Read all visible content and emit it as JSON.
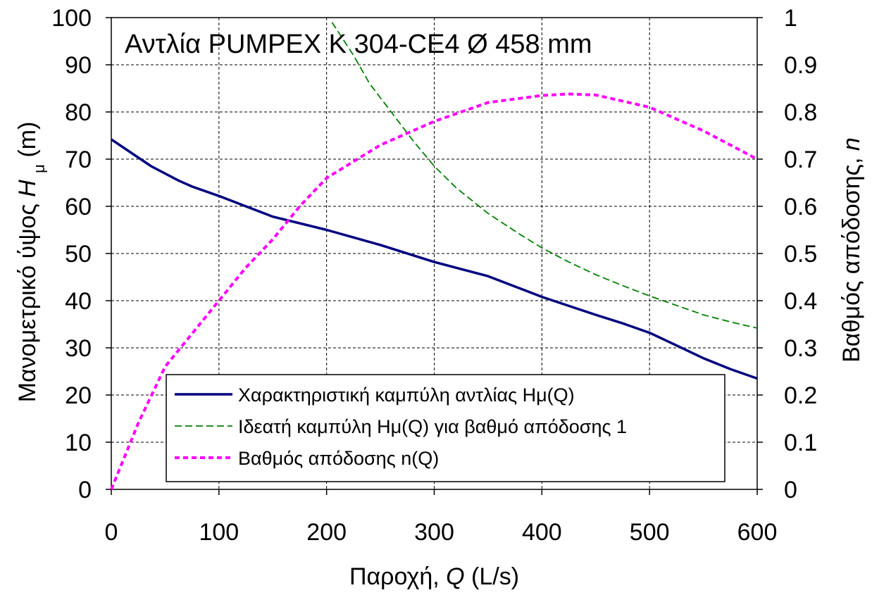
{
  "chart_data": {
    "type": "line",
    "title": "Αντλία PUMPEX K 304-CE4 Ø 458 mm",
    "xlabel": {
      "prefix": "Παροχή, ",
      "var": "Q",
      "suffix": " (L/s)"
    },
    "ylabel_left": {
      "prefix": "Μανομετρικό ύψος ",
      "var": "H",
      "sub": "μ",
      "suffix": " (m)"
    },
    "ylabel_right": {
      "prefix": "Βαθμός απόδοσης, ",
      "var": "n"
    },
    "xlim": [
      0,
      600
    ],
    "ylim_left": [
      0,
      100
    ],
    "ylim_right": [
      0,
      1
    ],
    "xticks": [
      "0",
      "100",
      "200",
      "300",
      "400",
      "500",
      "600"
    ],
    "yticks_left": [
      "0",
      "10",
      "20",
      "30",
      "40",
      "50",
      "60",
      "70",
      "80",
      "90",
      "100"
    ],
    "yticks_right": [
      "0",
      "0.1",
      "0.2",
      "0.3",
      "0.4",
      "0.5",
      "0.6",
      "0.7",
      "0.8",
      "0.9",
      "1"
    ],
    "grid": true,
    "legend_position": "bottom-center",
    "series": [
      {
        "name": "Χαρακτηριστική καμπύλη αντλίας Hμ(Q)",
        "axis": "left",
        "color": "#000080",
        "style": "solid",
        "x": [
          0,
          37,
          62,
          75,
          100,
          125,
          150,
          200,
          250,
          300,
          350,
          400,
          450,
          475,
          500,
          525,
          550,
          575,
          600
        ],
        "y": [
          74.2,
          68.5,
          65.5,
          64.2,
          62.2,
          60.0,
          57.8,
          55.0,
          51.8,
          48.2,
          45.2,
          40.8,
          37.0,
          35.2,
          33.2,
          30.5,
          27.8,
          25.5,
          23.5
        ]
      },
      {
        "name": "Ιδεατή καμπύλη Hμ(Q) για βαθμό απόδοσης 1",
        "axis": "left",
        "color": "#008000",
        "style": "dashed",
        "x": [
          205,
          225,
          240,
          260,
          280,
          300,
          320,
          350,
          380,
          400,
          425,
          450,
          475,
          500,
          525,
          550,
          575,
          600
        ],
        "y": [
          99.0,
          92.0,
          86.0,
          80.0,
          74.0,
          68.5,
          64.0,
          58.5,
          54.0,
          51.2,
          48.2,
          45.5,
          43.2,
          41.0,
          39.0,
          37.0,
          35.5,
          34.2
        ]
      },
      {
        "name": "Βαθμός απόδοσης n(Q)",
        "axis": "right",
        "color": "#ff00ff",
        "style": "dotted",
        "x": [
          0,
          25,
          50,
          75,
          100,
          125,
          150,
          175,
          200,
          250,
          300,
          350,
          400,
          425,
          450,
          500,
          550,
          600
        ],
        "y": [
          0.0,
          0.14,
          0.26,
          0.33,
          0.4,
          0.47,
          0.53,
          0.6,
          0.66,
          0.73,
          0.78,
          0.82,
          0.835,
          0.838,
          0.836,
          0.81,
          0.76,
          0.7
        ]
      }
    ]
  }
}
